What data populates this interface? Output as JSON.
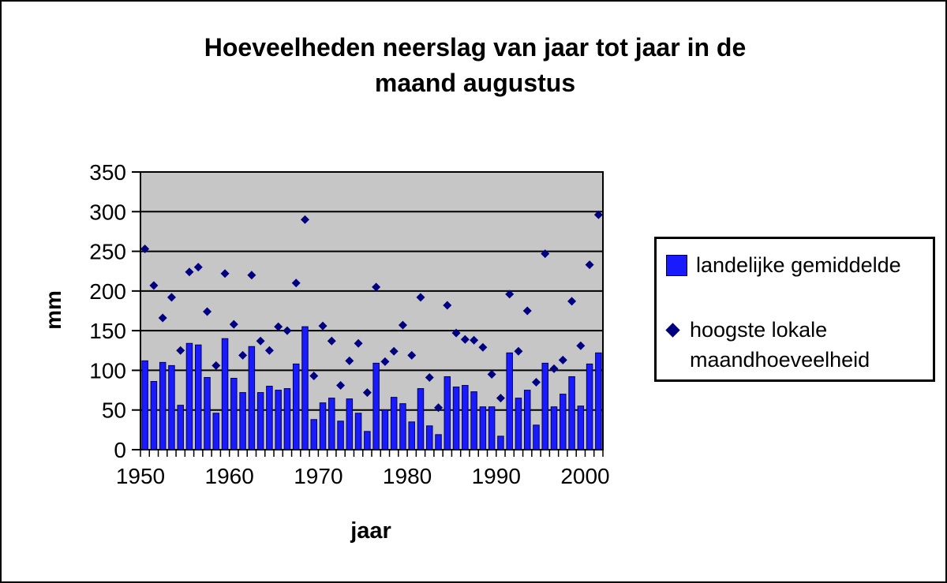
{
  "title": {
    "line1": "Hoeveelheden neerslag van jaar tot jaar in de",
    "line2": "maand augustus"
  },
  "axes": {
    "y_label": "mm",
    "x_label": "jaar",
    "y_ticks": [
      0,
      50,
      100,
      150,
      200,
      250,
      300,
      350
    ],
    "x_tick_labels": [
      "1950",
      "1960",
      "1970",
      "1980",
      "1990",
      "2000"
    ]
  },
  "legend": {
    "items": [
      {
        "label": "landelijke gemiddelde",
        "marker": "square"
      },
      {
        "label": "hoogste lokale maandhoeveelheid",
        "line1": "hoogste lokale",
        "line2": "maandhoeveelheid",
        "marker": "diamond"
      }
    ]
  },
  "colors": {
    "bar": "#1a1aff",
    "bar_edge": "#000060",
    "diamond": "#000080",
    "plot_bg": "#c6c6c6",
    "grid": "#000000"
  },
  "chart_data": {
    "type": "bar",
    "title": "Hoeveelheden neerslag van jaar tot jaar in de maand augustus",
    "xlabel": "jaar",
    "ylabel": "mm",
    "ylim": [
      0,
      350
    ],
    "grid": "horizontal",
    "legend_position": "right",
    "x": [
      1951,
      1952,
      1953,
      1954,
      1955,
      1956,
      1957,
      1958,
      1959,
      1960,
      1961,
      1962,
      1963,
      1964,
      1965,
      1966,
      1967,
      1968,
      1969,
      1970,
      1971,
      1972,
      1973,
      1974,
      1975,
      1976,
      1977,
      1978,
      1979,
      1980,
      1981,
      1982,
      1983,
      1984,
      1985,
      1986,
      1987,
      1988,
      1989,
      1990,
      1991,
      1992,
      1993,
      1994,
      1995,
      1996,
      1997,
      1998,
      1999,
      2000,
      2001,
      2002
    ],
    "series": [
      {
        "name": "landelijke gemiddelde",
        "type": "bar",
        "values": [
          112,
          86,
          110,
          106,
          56,
          134,
          132,
          91,
          46,
          140,
          90,
          72,
          130,
          72,
          80,
          75,
          77,
          108,
          155,
          38,
          59,
          65,
          36,
          64,
          46,
          23,
          109,
          50,
          66,
          58,
          35,
          77,
          30,
          19,
          92,
          79,
          81,
          73,
          54,
          54,
          17,
          122,
          65,
          75,
          31,
          109,
          54,
          70,
          92,
          55,
          108,
          122
        ]
      },
      {
        "name": "hoogste lokale maandhoeveelheid",
        "type": "scatter",
        "marker": "diamond",
        "values": [
          253,
          207,
          166,
          192,
          125,
          224,
          230,
          174,
          106,
          222,
          158,
          119,
          220,
          137,
          125,
          155,
          150,
          210,
          290,
          93,
          156,
          137,
          81,
          112,
          134,
          72,
          205,
          111,
          124,
          157,
          119,
          192,
          91,
          53,
          182,
          147,
          139,
          138,
          129,
          95,
          65,
          196,
          124,
          175,
          85,
          247,
          102,
          113,
          187,
          131,
          233,
          296
        ]
      }
    ]
  }
}
